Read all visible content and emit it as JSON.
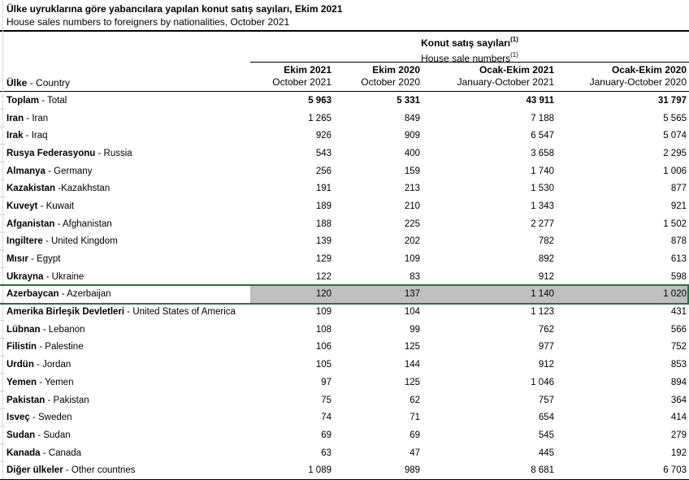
{
  "title": {
    "tr": "Ülke uyruklarına göre yabancılara yapılan konut satış sayıları, Ekim 2021",
    "en": "House sales numbers to foreigners by nationalities, October 2021"
  },
  "table": {
    "group_header": {
      "tr": "Konut satış sayıları",
      "en": "House sale numbers",
      "footnote_marker": "(1)"
    },
    "row_header": {
      "tr": "Ülke",
      "rest": " - Country"
    },
    "columns": [
      {
        "tr": "Ekim 2021",
        "en": "October 2021"
      },
      {
        "tr": "Ekim 2020",
        "en": "October 2020"
      },
      {
        "tr": "Ocak-Ekim 2021",
        "en": "January-October 2021"
      },
      {
        "tr": "Ocak-Ekim 2020",
        "en": "January-October 2020"
      }
    ],
    "selection_border_color": "#217346",
    "selection_fill_color": "#bfbfbf",
    "rows": [
      {
        "tr": "Toplam",
        "rest": " - Total",
        "values": [
          "5 963",
          "5 331",
          "43 911",
          "31 797"
        ],
        "bold_values": true
      },
      {
        "tr": "İran",
        "rest": " - Iran",
        "values": [
          "1 265",
          "849",
          "7 188",
          "5 565"
        ]
      },
      {
        "tr": "Irak",
        "rest": " - Iraq",
        "values": [
          "926",
          "909",
          "6 547",
          "5 074"
        ]
      },
      {
        "tr": "Rusya Federasyonu",
        "rest": " - Russia",
        "values": [
          "543",
          "400",
          "3 658",
          "2 295"
        ]
      },
      {
        "tr": "Almanya",
        "rest": " - Germany",
        "values": [
          "256",
          "159",
          "1 740",
          "1 006"
        ]
      },
      {
        "tr": "Kazakistan",
        "rest": " -Kazakhstan",
        "values": [
          "191",
          "213",
          "1 530",
          "877"
        ]
      },
      {
        "tr": "Kuveyt",
        "rest": " - Kuwait",
        "values": [
          "189",
          "210",
          "1 343",
          "921"
        ]
      },
      {
        "tr": "Afganistan",
        "rest": " - Afghanistan",
        "values": [
          "188",
          "225",
          "2 277",
          "1 502"
        ]
      },
      {
        "tr": "İngiltere",
        "rest": " - United Kingdom",
        "values": [
          "139",
          "202",
          "782",
          "878"
        ]
      },
      {
        "tr": "Mısır",
        "rest": " - Egypt",
        "values": [
          "129",
          "109",
          "892",
          "613"
        ]
      },
      {
        "tr": "Ukrayna",
        "rest": " - Ukraine",
        "values": [
          "122",
          "83",
          "912",
          "598"
        ]
      },
      {
        "tr": "Azerbaycan",
        "rest": " - Azerbaijan",
        "values": [
          "120",
          "137",
          "1 140",
          "1 020"
        ],
        "selected": true
      },
      {
        "tr": "Amerika Birleşik Devletleri",
        "rest": " - United States of America",
        "values": [
          "109",
          "104",
          "1 123",
          "431"
        ]
      },
      {
        "tr": "Lübnan",
        "rest": " - Lebanon",
        "values": [
          "108",
          "99",
          "762",
          "566"
        ]
      },
      {
        "tr": "Filistin",
        "rest": " - Palestine",
        "values": [
          "106",
          "125",
          "977",
          "752"
        ]
      },
      {
        "tr": "Ürdün",
        "rest": " - Jordan",
        "values": [
          "105",
          "144",
          "912",
          "853"
        ]
      },
      {
        "tr": "Yemen",
        "rest": " - Yemen",
        "values": [
          "97",
          "125",
          "1 046",
          "894"
        ]
      },
      {
        "tr": "Pakistan",
        "rest": " - Pakistan",
        "values": [
          "75",
          "62",
          "757",
          "364"
        ]
      },
      {
        "tr": "İsveç",
        "rest": " - Sweden",
        "values": [
          "74",
          "71",
          "654",
          "414"
        ]
      },
      {
        "tr": "Sudan",
        "rest": " - Sudan",
        "values": [
          "69",
          "69",
          "545",
          "279"
        ]
      },
      {
        "tr": "Kanada",
        "rest": " - Canada",
        "values": [
          "63",
          "47",
          "445",
          "192"
        ]
      },
      {
        "tr": "Diğer ülkeler",
        "rest": " - Other countries",
        "values": [
          "1 089",
          "989",
          "8 681",
          "6 703"
        ]
      }
    ]
  }
}
